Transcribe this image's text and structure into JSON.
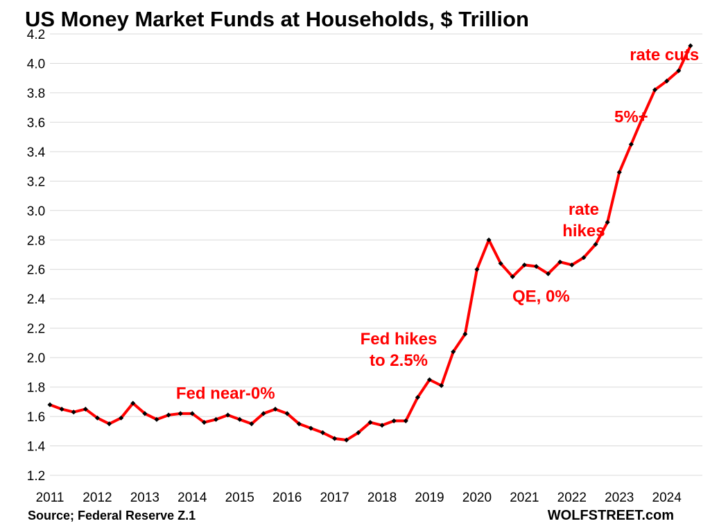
{
  "chart_data": {
    "type": "line",
    "title": "US Money Market Funds at Households, $ Trillion",
    "xlabel": "",
    "ylabel": "",
    "ylim": [
      1.2,
      4.2
    ],
    "yticks": [
      "1.2",
      "1.4",
      "1.6",
      "1.8",
      "2.0",
      "2.2",
      "2.4",
      "2.6",
      "2.8",
      "3.0",
      "3.2",
      "3.4",
      "3.6",
      "3.8",
      "4.0",
      "4.2"
    ],
    "xlim": [
      2011,
      2024.75
    ],
    "xticks": [
      "2011",
      "2012",
      "2013",
      "2014",
      "2015",
      "2016",
      "2017",
      "2018",
      "2019",
      "2020",
      "2021",
      "2022",
      "2023",
      "2024"
    ],
    "grid": true,
    "legend": "none",
    "line_color": "#ff0000",
    "marker_color": "#000000",
    "annotation_color": "#ff0000",
    "series": [
      {
        "x": [
          2011.0,
          2011.25,
          2011.5,
          2011.75,
          2012.0,
          2012.25,
          2012.5,
          2012.75,
          2013.0,
          2013.25,
          2013.5,
          2013.75,
          2014.0,
          2014.25,
          2014.5,
          2014.75,
          2015.0,
          2015.25,
          2015.5,
          2015.75,
          2016.0,
          2016.25,
          2016.5,
          2016.75,
          2017.0,
          2017.25,
          2017.5,
          2017.75,
          2018.0,
          2018.25,
          2018.5,
          2018.75,
          2019.0,
          2019.25,
          2019.5,
          2019.75,
          2020.0,
          2020.25,
          2020.5,
          2020.75,
          2021.0,
          2021.25,
          2021.5,
          2021.75,
          2022.0,
          2022.25,
          2022.5,
          2022.75,
          2023.0,
          2023.25,
          2023.5,
          2023.75,
          2024.0,
          2024.25,
          2024.5
        ],
        "values": [
          1.68,
          1.65,
          1.63,
          1.65,
          1.59,
          1.55,
          1.59,
          1.69,
          1.62,
          1.58,
          1.61,
          1.62,
          1.62,
          1.56,
          1.58,
          1.61,
          1.58,
          1.55,
          1.62,
          1.65,
          1.62,
          1.55,
          1.52,
          1.49,
          1.45,
          1.44,
          1.49,
          1.56,
          1.54,
          1.57,
          1.57,
          1.73,
          1.85,
          1.81,
          2.04,
          2.16,
          2.6,
          2.8,
          2.64,
          2.55,
          2.63,
          2.62,
          2.57,
          2.65,
          2.63,
          2.68,
          2.77,
          2.92,
          3.26,
          3.45,
          3.64,
          3.82,
          3.88,
          3.95,
          4.12
        ]
      }
    ],
    "annotations": [
      {
        "lines": [
          "Fed near-0%"
        ],
        "x": 2014.7,
        "y": 1.72
      },
      {
        "lines": [
          "Fed hikes",
          "to 2.5%"
        ],
        "x": 2018.35,
        "y": 2.09
      },
      {
        "lines": [
          "QE, 0%"
        ],
        "x": 2021.35,
        "y": 2.38
      },
      {
        "lines": [
          "rate",
          "hikes"
        ],
        "x": 2022.25,
        "y": 2.97
      },
      {
        "lines": [
          "5%+"
        ],
        "x": 2023.25,
        "y": 3.6
      },
      {
        "lines": [
          "rate cuts"
        ],
        "x": 2023.95,
        "y": 4.02
      }
    ]
  },
  "footer": {
    "source": "Source; Federal Reserve Z.1",
    "brand": "WOLFSTREET.com"
  }
}
